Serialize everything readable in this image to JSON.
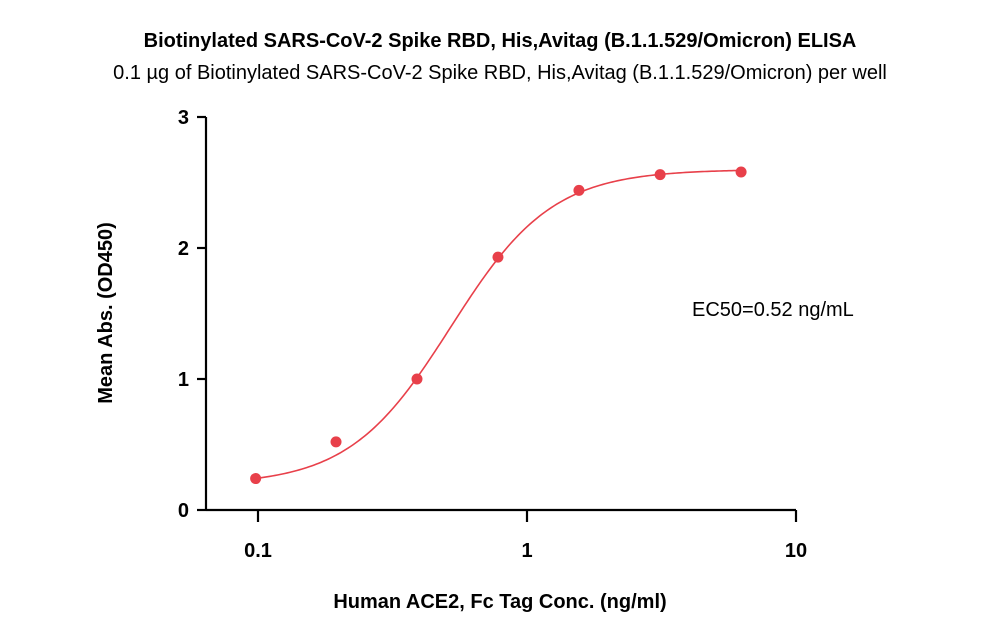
{
  "chart_data": {
    "type": "scatter",
    "title": "Biotinylated SARS-CoV-2 Spike RBD, His,Avitag (B.1.1.529/Omicron) ELISA",
    "subtitle": "0.1 µg of Biotinylated SARS-CoV-2 Spike RBD, His,Avitag (B.1.1.529/Omicron) per well",
    "xlabel": "Human ACE2, Fc Tag Conc. (ng/ml)",
    "ylabel": "Mean Abs. (OD450)",
    "x_scale": "log",
    "xlim": [
      0.07,
      10
    ],
    "ylim": [
      0,
      3
    ],
    "x_ticks": [
      0.1,
      1,
      10
    ],
    "x_tick_labels": [
      "0.1",
      "1",
      "10"
    ],
    "y_ticks": [
      0,
      1,
      2,
      3
    ],
    "y_tick_labels": [
      "0",
      "1",
      "2",
      "3"
    ],
    "grid": false,
    "series": [
      {
        "color": "#e8404a",
        "x": [
          0.098,
          0.195,
          0.39,
          0.78,
          1.56,
          3.125,
          6.25
        ],
        "y": [
          0.24,
          0.52,
          1.0,
          1.93,
          2.44,
          2.56,
          2.58
        ]
      }
    ],
    "fit": {
      "model": "4PL",
      "bottom": 0.19,
      "top": 2.6,
      "ec50": 0.52,
      "hill": 2.3,
      "color": "#e8404a"
    },
    "annotation": "EC50=0.52 ng/mL"
  }
}
